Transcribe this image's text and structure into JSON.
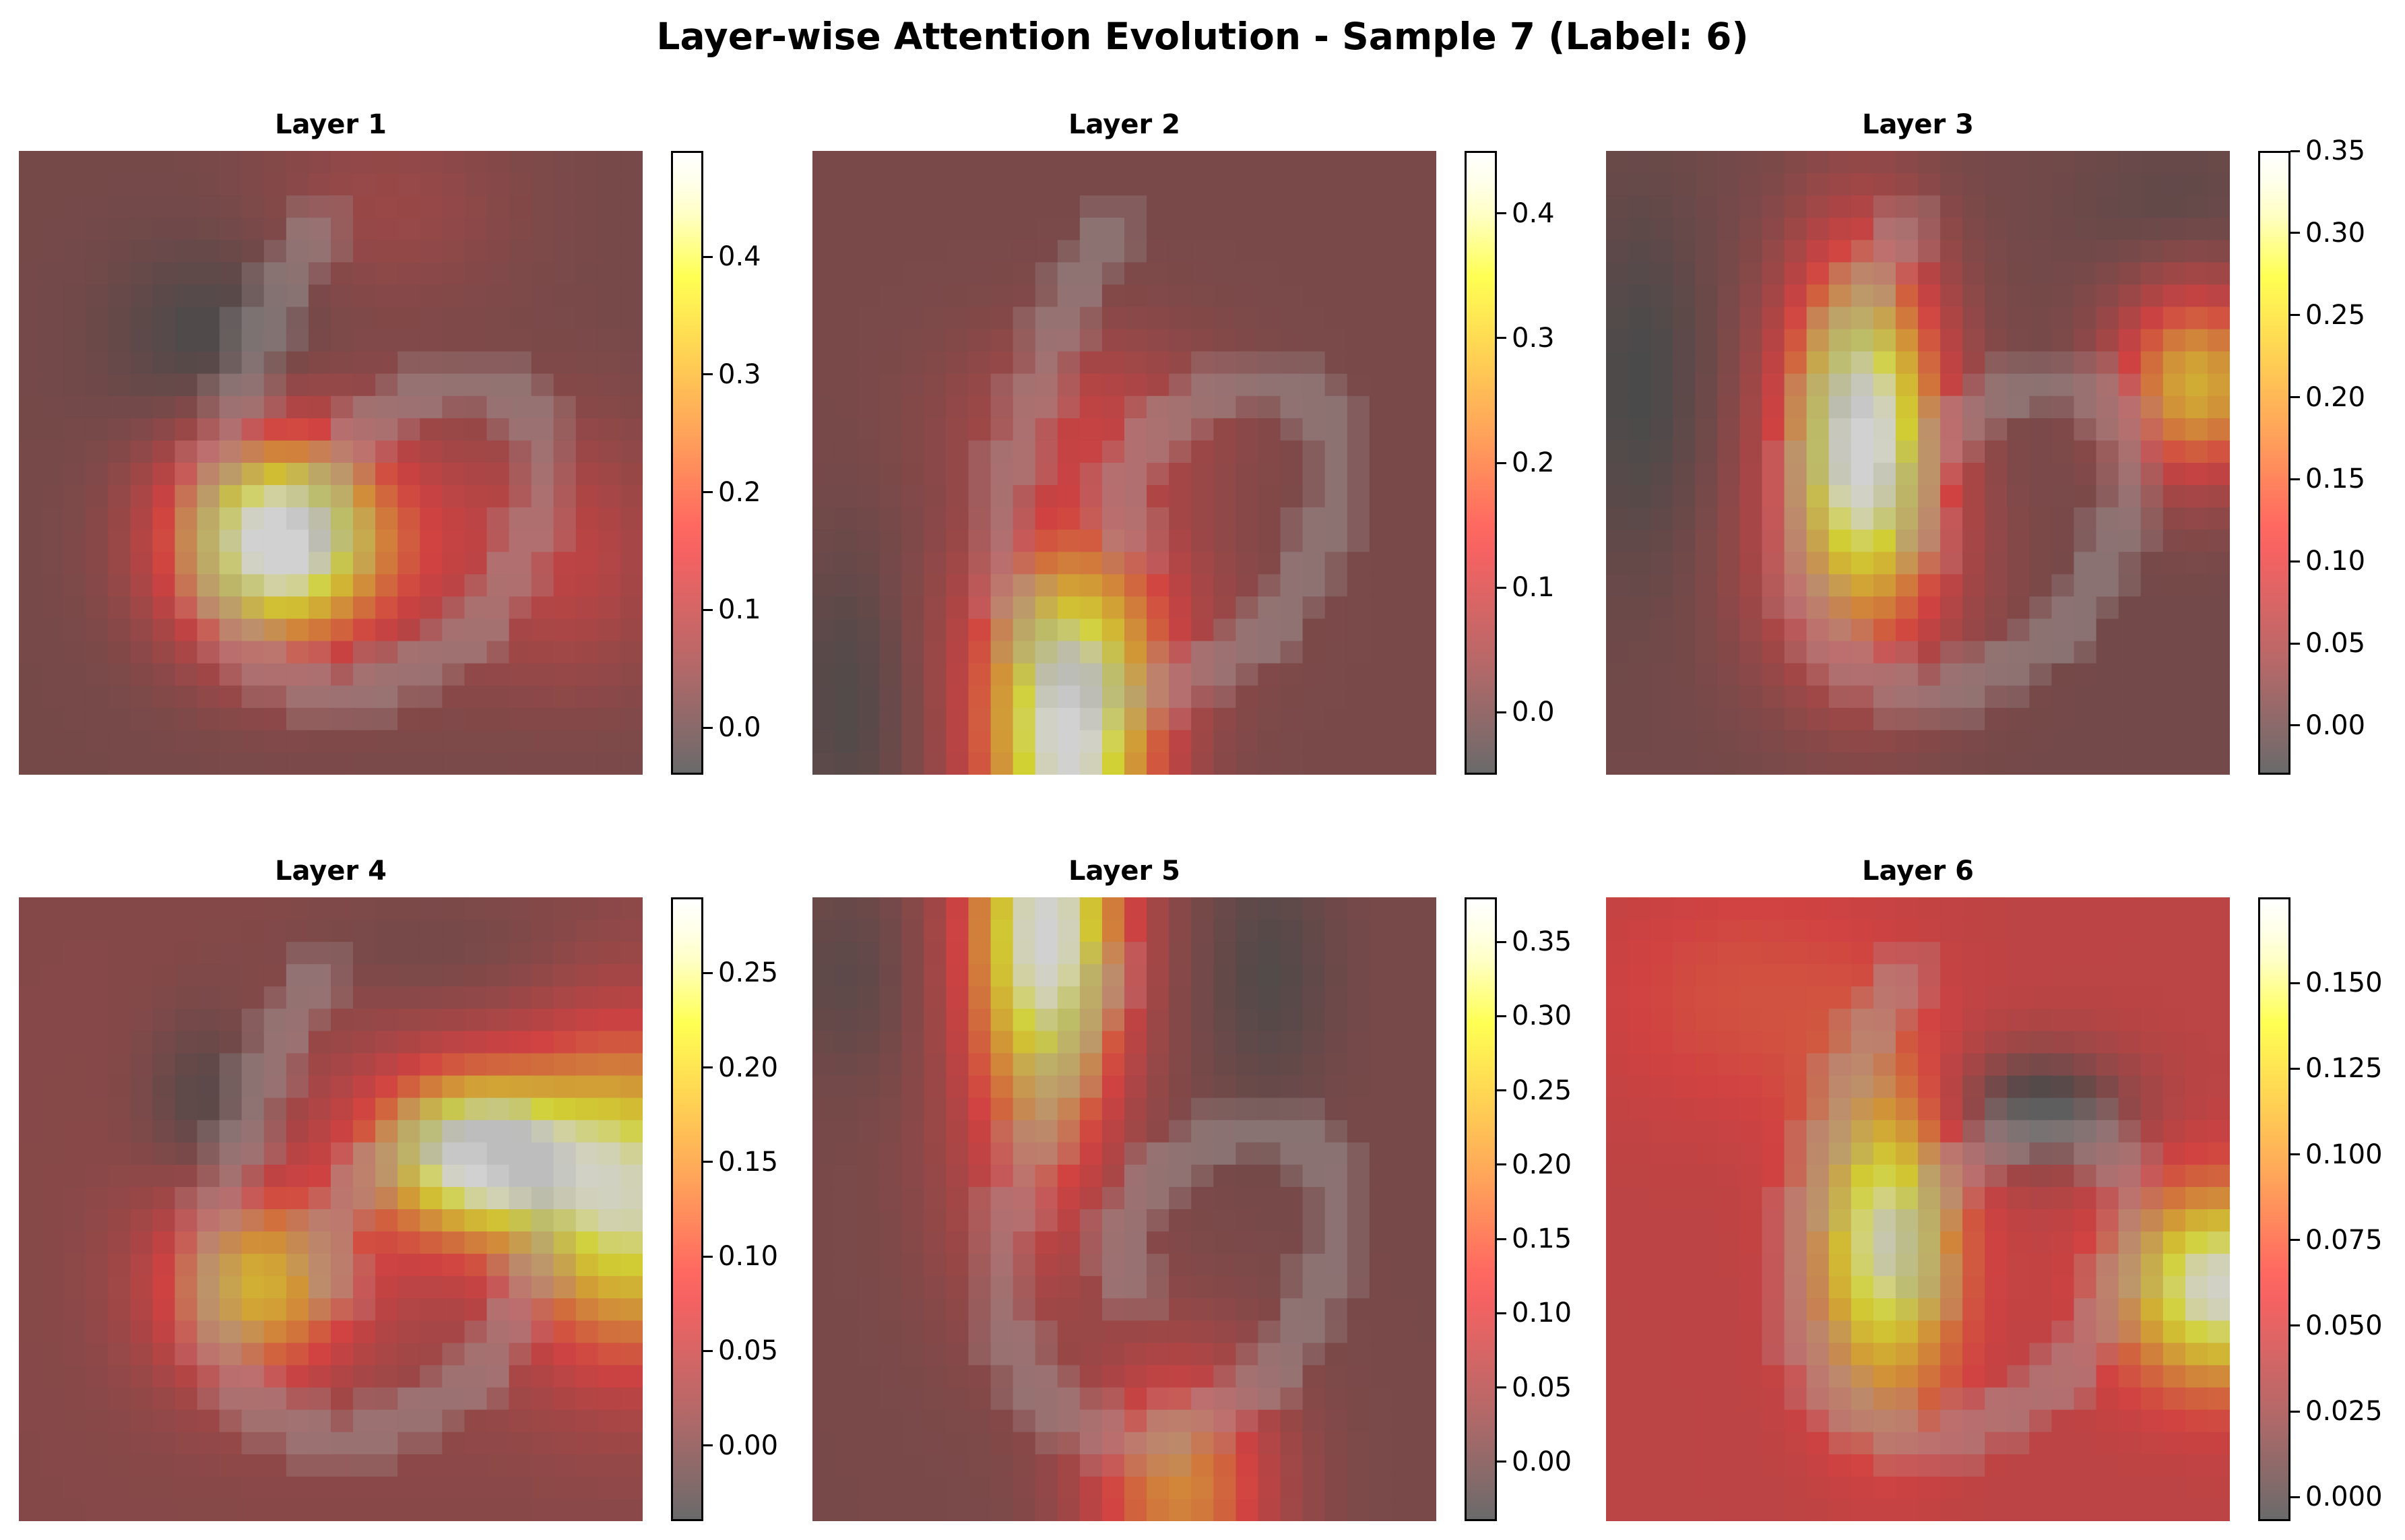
{
  "figure": {
    "title": "Layer-wise Attention Evolution - Sample 7 (Label: 6)"
  },
  "colors": {
    "colormap": [
      "#5a5a5a",
      "#b05858",
      "#ff5050",
      "#ff9a48",
      "#ffd040",
      "#ffff40",
      "#ffffd8",
      "#ffffff"
    ],
    "digit_overlay": "#c8c8c8"
  },
  "chart_data": [
    {
      "type": "heatmap",
      "title": "Layer 1",
      "grid_size": [
        28,
        28
      ],
      "colorbar_range": [
        -0.04,
        0.49
      ],
      "colorbar_ticks": [
        "0.0",
        "0.1",
        "0.2",
        "0.3",
        "0.4"
      ],
      "colorbar_tick_values": [
        0.0,
        0.1,
        0.2,
        0.3,
        0.4
      ],
      "background": 0.02,
      "blobs": [
        {
          "x": 11,
          "y": 17,
          "sx": 3.3,
          "sy": 3.3,
          "a": 0.47
        },
        {
          "x": 18,
          "y": 17,
          "sx": 5,
          "sy": 4,
          "a": 0.09
        },
        {
          "x": 25,
          "y": 18,
          "sx": 3,
          "sy": 4,
          "a": 0.07
        },
        {
          "x": 16,
          "y": 2,
          "sx": 4,
          "sy": 3,
          "a": 0.05
        },
        {
          "x": 8,
          "y": 8,
          "sx": 3,
          "sy": 3,
          "a": -0.06
        }
      ]
    },
    {
      "type": "heatmap",
      "title": "Layer 2",
      "grid_size": [
        28,
        28
      ],
      "colorbar_range": [
        -0.05,
        0.45
      ],
      "colorbar_ticks": [
        "0.0",
        "0.1",
        "0.2",
        "0.3",
        "0.4"
      ],
      "colorbar_tick_values": [
        0.0,
        0.1,
        0.2,
        0.3,
        0.4
      ],
      "background": 0.01,
      "blobs": [
        {
          "x": 11,
          "y": 26,
          "sx": 2.8,
          "sy": 5,
          "a": 0.44
        },
        {
          "x": 12,
          "y": 12,
          "sx": 4,
          "sy": 3,
          "a": 0.1
        },
        {
          "x": 12,
          "y": 20,
          "sx": 4,
          "sy": 3,
          "a": 0.1
        },
        {
          "x": 1,
          "y": 24,
          "sx": 2,
          "sy": 5,
          "a": -0.05
        }
      ]
    },
    {
      "type": "heatmap",
      "title": "Layer 3",
      "grid_size": [
        28,
        28
      ],
      "colorbar_range": [
        -0.03,
        0.35
      ],
      "colorbar_ticks": [
        "0.00",
        "0.05",
        "0.10",
        "0.15",
        "0.20",
        "0.25",
        "0.30",
        "0.35"
      ],
      "colorbar_tick_values": [
        0.0,
        0.05,
        0.1,
        0.15,
        0.2,
        0.25,
        0.3,
        0.35
      ],
      "background": 0.01,
      "blobs": [
        {
          "x": 11,
          "y": 12,
          "sx": 2.5,
          "sy": 5.5,
          "a": 0.34
        },
        {
          "x": 26,
          "y": 10,
          "sx": 2.5,
          "sy": 3,
          "a": 0.22
        },
        {
          "x": 11,
          "y": 19,
          "sx": 4,
          "sy": 4,
          "a": 0.06
        },
        {
          "x": 1,
          "y": 10,
          "sx": 2,
          "sy": 6,
          "a": -0.04
        },
        {
          "x": 25,
          "y": 2,
          "sx": 3,
          "sy": 2,
          "a": -0.02
        }
      ]
    },
    {
      "type": "heatmap",
      "title": "Layer 4",
      "grid_size": [
        28,
        28
      ],
      "colorbar_range": [
        -0.04,
        0.29
      ],
      "colorbar_ticks": [
        "0.00",
        "0.05",
        "0.10",
        "0.15",
        "0.20",
        "0.25"
      ],
      "colorbar_tick_values": [
        0.0,
        0.05,
        0.1,
        0.15,
        0.2,
        0.25
      ],
      "background": 0.01,
      "blobs": [
        {
          "x": 20,
          "y": 11,
          "sx": 3,
          "sy": 2.5,
          "a": 0.25
        },
        {
          "x": 27,
          "y": 13,
          "sx": 3.5,
          "sy": 5,
          "a": 0.24
        },
        {
          "x": 10,
          "y": 17,
          "sx": 3,
          "sy": 3,
          "a": 0.16
        },
        {
          "x": 16,
          "y": 13,
          "sx": 6,
          "sy": 6,
          "a": 0.04
        },
        {
          "x": 8,
          "y": 9,
          "sx": 2,
          "sy": 3,
          "a": -0.05
        },
        {
          "x": 18,
          "y": 2,
          "sx": 5,
          "sy": 2,
          "a": -0.02
        }
      ]
    },
    {
      "type": "heatmap",
      "title": "Layer 5",
      "grid_size": [
        28,
        28
      ],
      "colorbar_range": [
        -0.04,
        0.38
      ],
      "colorbar_ticks": [
        "0.00",
        "0.05",
        "0.10",
        "0.15",
        "0.20",
        "0.25",
        "0.30",
        "0.35"
      ],
      "colorbar_tick_values": [
        0.0,
        0.05,
        0.1,
        0.15,
        0.2,
        0.25,
        0.3,
        0.35
      ],
      "background": 0.01,
      "blobs": [
        {
          "x": 10,
          "y": 1,
          "sx": 2.5,
          "sy": 6,
          "a": 0.37
        },
        {
          "x": 16,
          "y": 26,
          "sx": 3,
          "sy": 4,
          "a": 0.19
        },
        {
          "x": 9,
          "y": 13,
          "sx": 3,
          "sy": 5,
          "a": 0.06
        },
        {
          "x": 20,
          "y": 3,
          "sx": 2,
          "sy": 4,
          "a": -0.04
        },
        {
          "x": 1,
          "y": 3,
          "sx": 2,
          "sy": 3,
          "a": -0.03
        }
      ]
    },
    {
      "type": "heatmap",
      "title": "Layer 6",
      "grid_size": [
        28,
        28
      ],
      "colorbar_range": [
        -0.007,
        0.175
      ],
      "colorbar_ticks": [
        "0.000",
        "0.025",
        "0.050",
        "0.075",
        "0.100",
        "0.125",
        "0.150"
      ],
      "colorbar_tick_values": [
        0.0,
        0.025,
        0.05,
        0.075,
        0.1,
        0.125,
        0.15
      ],
      "background": 0.05,
      "blobs": [
        {
          "x": 12,
          "y": 15,
          "sx": 2.3,
          "sy": 5,
          "a": 0.11
        },
        {
          "x": 27,
          "y": 17,
          "sx": 3,
          "sy": 3,
          "a": 0.12
        },
        {
          "x": 19,
          "y": 9,
          "sx": 3,
          "sy": 2,
          "a": -0.06
        },
        {
          "x": 6,
          "y": 4,
          "sx": 5,
          "sy": 4,
          "a": 0.02
        }
      ]
    }
  ]
}
